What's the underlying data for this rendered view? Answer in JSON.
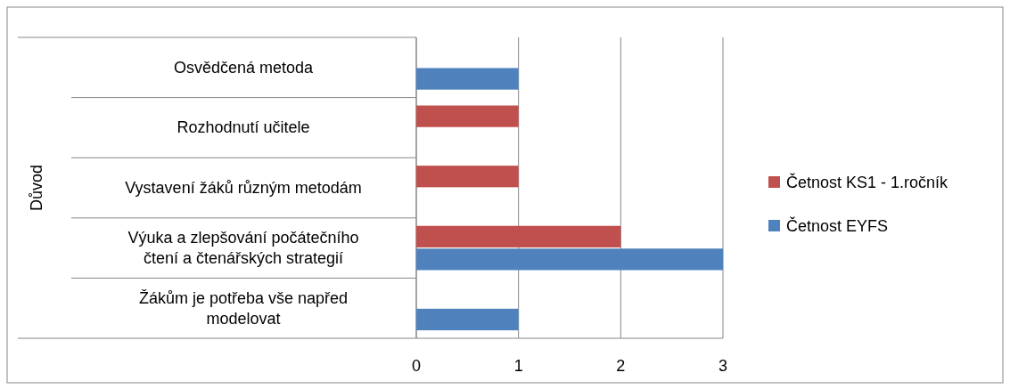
{
  "chart_data": {
    "type": "bar",
    "orientation": "horizontal",
    "ylabel": "Důvod",
    "categories": [
      "Osvědčená metoda",
      "Rozhodnutí učitele",
      "Vystavení žáků různým metodám",
      "Výuka  a zlepšování počátečního čtení a čtenářských strategií",
      "Žákům je potřeba vše napřed modelovat"
    ],
    "series": [
      {
        "name": "Četnost KS1 - 1.ročník",
        "color": "#c0504d",
        "values": [
          null,
          1,
          1,
          2,
          null
        ]
      },
      {
        "name": "Četnost EYFS",
        "color": "#4f81bd",
        "values": [
          1,
          null,
          null,
          3,
          1
        ]
      }
    ],
    "xlim": [
      0,
      3
    ],
    "xticks": [
      0,
      1,
      2,
      3
    ],
    "grid": "x",
    "legend": "right"
  }
}
